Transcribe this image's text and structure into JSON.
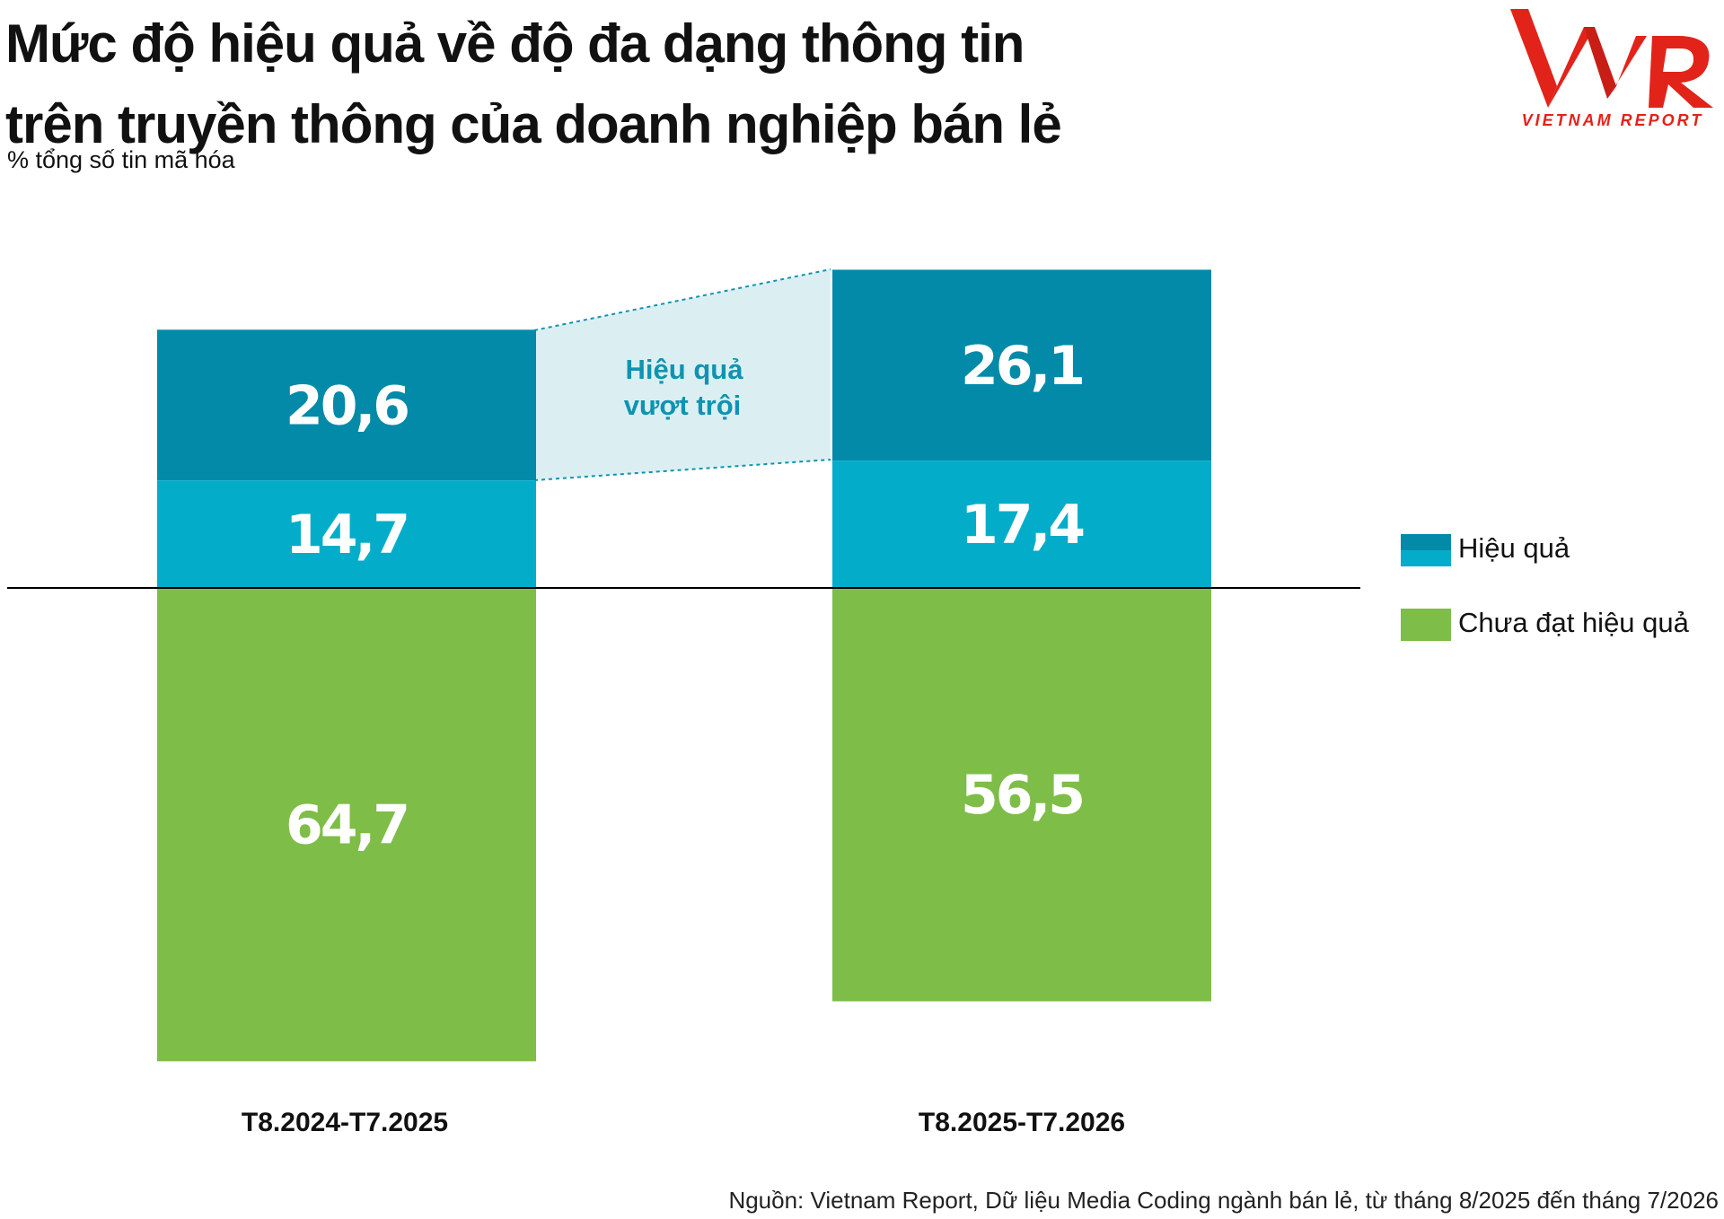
{
  "title": {
    "line1": "Mức độ hiệu quả về độ đa dạng thông tin",
    "line2": "trên truyền thông của doanh nghiệp bán lẻ"
  },
  "subtitle": "% tổng số tin mã hóa",
  "logo": {
    "text": "VIETNAM REPORT",
    "color": "#e2231a"
  },
  "chart_data": {
    "type": "bar",
    "stacked": "diverging",
    "categories": [
      "T8.2024-T7.2025",
      "T8.2025-T7.2026"
    ],
    "series": [
      {
        "name": "Hiệu quả",
        "segment": "top",
        "color": "#028aa8",
        "values": [
          20.6,
          26.1
        ],
        "labels": [
          "20,6",
          "26,1"
        ]
      },
      {
        "name": "Hiệu quả",
        "segment": "bottom",
        "color": "#03adc9",
        "values": [
          14.7,
          17.4
        ],
        "labels": [
          "14,7",
          "17,4"
        ]
      },
      {
        "name": "Chưa đạt hiệu quả",
        "segment": "below-baseline",
        "color": "#7ebd48",
        "values": [
          64.7,
          56.5
        ],
        "labels": [
          "64,7",
          "56,5"
        ]
      }
    ],
    "annotation": {
      "line1": "Hiệu quả",
      "line2": "vượt trội",
      "color": "#0f93b1",
      "band_color": "#dbeff3"
    },
    "baseline": 0,
    "legend_position": "right",
    "grid": false
  },
  "legend": [
    {
      "label": "Hiệu quả",
      "swatch": "two-tone blue"
    },
    {
      "label": "Chưa đạt hiệu quả",
      "swatch": "green"
    }
  ],
  "source": "Nguồn: Vietnam Report, Dữ liệu Media Coding ngành bán lẻ, từ tháng 8/2025 đến tháng 7/2026"
}
